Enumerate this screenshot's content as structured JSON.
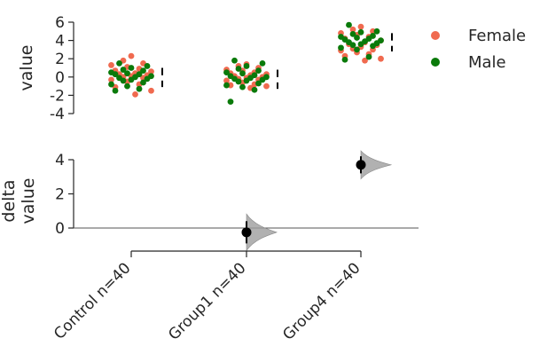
{
  "chart_data": {
    "type": "scatter",
    "panels": [
      {
        "name": "raw",
        "ylabel": "value",
        "ylim": [
          -4,
          6
        ],
        "yticks": [
          -4,
          -2,
          0,
          2,
          4,
          6
        ],
        "groups": [
          "Control",
          "Group1",
          "Group4"
        ],
        "series": [
          {
            "name": "Female",
            "color": "#f06a4f",
            "points": [
              {
                "group": "Control",
                "values": [
                  2.3,
                  1.8,
                  1.5,
                  1.3,
                  1.1,
                  0.9,
                  0.7,
                  0.6,
                  0.4,
                  0.3,
                  0.2,
                  0.1,
                  0.0,
                  -0.1,
                  -0.3,
                  -0.5,
                  -0.8,
                  -1.1,
                  -1.5,
                  -1.9
                ]
              },
              {
                "group": "Group1",
                "values": [
                  1.4,
                  1.2,
                  1.0,
                  0.8,
                  0.7,
                  0.5,
                  0.4,
                  0.3,
                  0.2,
                  0.1,
                  0.0,
                  -0.1,
                  -0.2,
                  -0.3,
                  -0.4,
                  -0.6,
                  -0.8,
                  -0.9,
                  -1.0,
                  -1.2
                ]
              },
              {
                "group": "Group4",
                "values": [
                  5.5,
                  5.2,
                  5.0,
                  4.8,
                  4.6,
                  4.4,
                  4.2,
                  4.0,
                  3.8,
                  3.6,
                  3.5,
                  3.3,
                  3.1,
                  3.0,
                  2.9,
                  2.7,
                  2.5,
                  2.3,
                  2.0,
                  1.8
                ]
              }
            ]
          },
          {
            "name": "Male",
            "color": "#0a7a0a",
            "points": [
              {
                "group": "Control",
                "values": [
                  1.5,
                  1.2,
                  1.0,
                  0.8,
                  0.7,
                  0.5,
                  0.4,
                  0.3,
                  0.3,
                  0.1,
                  0.0,
                  -0.1,
                  -0.2,
                  -0.3,
                  -0.4,
                  -0.6,
                  -0.8,
                  -1.0,
                  -1.3,
                  -1.5
                ]
              },
              {
                "group": "Group1",
                "values": [
                  1.8,
                  1.5,
                  1.2,
                  0.9,
                  0.7,
                  0.5,
                  0.4,
                  0.2,
                  0.1,
                  0.0,
                  -0.1,
                  -0.2,
                  -0.3,
                  -0.4,
                  -0.5,
                  -0.7,
                  -0.9,
                  -1.1,
                  -1.4,
                  -2.7
                ]
              },
              {
                "group": "Group4",
                "values": [
                  5.7,
                  5.0,
                  4.9,
                  4.7,
                  4.5,
                  4.4,
                  4.3,
                  4.2,
                  4.1,
                  4.0,
                  3.9,
                  3.8,
                  3.7,
                  3.6,
                  3.5,
                  3.4,
                  3.2,
                  3.0,
                  2.2,
                  1.9
                ]
              }
            ]
          }
        ],
        "summary_lines": [
          {
            "group": "Control",
            "mean": -0.1,
            "lo": -1.1,
            "hi": 1.0
          },
          {
            "group": "Group1",
            "mean": -0.3,
            "lo": -1.3,
            "hi": 0.8
          },
          {
            "group": "Group4",
            "mean": 3.7,
            "lo": 2.8,
            "hi": 4.8
          }
        ]
      },
      {
        "name": "delta",
        "ylabel": "delta\nvalue",
        "ylim": [
          -1.3,
          4.4
        ],
        "yticks": [
          0,
          2,
          4
        ],
        "effects": [
          {
            "group": "Group1",
            "diff": -0.25,
            "ci": [
              -0.9,
              0.4
            ]
          },
          {
            "group": "Group4",
            "diff": 3.7,
            "ci": [
              3.2,
              4.2
            ]
          }
        ]
      }
    ],
    "xticklabels": [
      "Control n=40",
      "Group1 n=40",
      "Group4 n=40"
    ],
    "legend": {
      "placement": "top-right",
      "entries": [
        "Female",
        "Male"
      ]
    }
  }
}
